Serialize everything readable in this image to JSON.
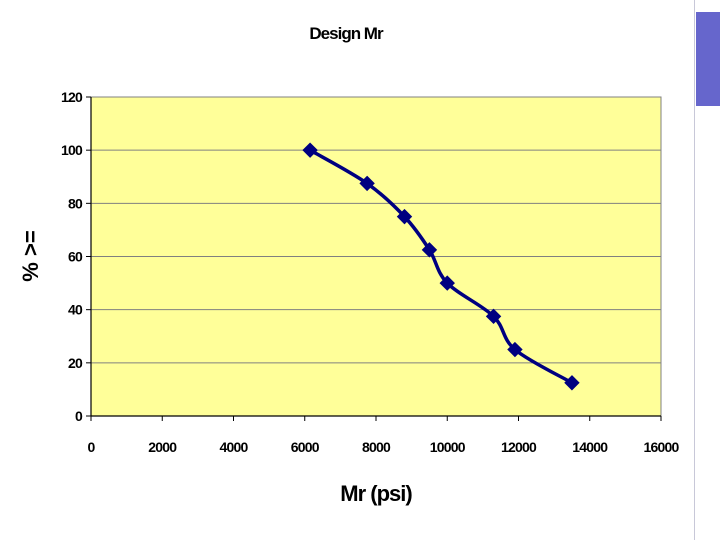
{
  "colors": {
    "plot_background": "#ffff99",
    "series_line": "#000080",
    "marker": "#000080",
    "gridline": "#808080",
    "slide_accent": "#6666cc"
  },
  "chart_data": {
    "type": "scatter",
    "title": "Design Mr",
    "xlabel": "Mr (psi)",
    "ylabel": "% >=",
    "xlim": [
      0,
      16000
    ],
    "ylim": [
      0,
      120
    ],
    "x_ticks": [
      "0",
      "2000",
      "4000",
      "6000",
      "8000",
      "10000",
      "12000",
      "14000",
      "16000"
    ],
    "y_ticks": [
      "0",
      "20",
      "40",
      "60",
      "80",
      "100",
      "120"
    ],
    "grid": "horizontal",
    "legend": "none",
    "series": [
      {
        "x": [
          6150,
          7750,
          8800,
          9500,
          10000,
          11300,
          11900,
          13500
        ],
        "y": [
          100,
          87.5,
          75,
          62.5,
          50,
          37.5,
          25,
          12.5
        ]
      }
    ]
  }
}
